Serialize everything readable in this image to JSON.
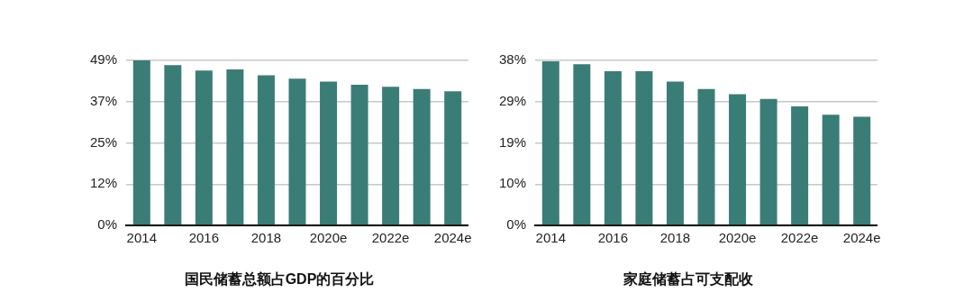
{
  "chart_data": [
    {
      "type": "bar",
      "title": "国民储蓄总额占GDP的百分比",
      "categories": [
        "2014",
        null,
        "2016",
        null,
        "2018",
        null,
        "2020e",
        null,
        "2022e",
        null,
        "2024e"
      ],
      "values": [
        49.0,
        47.6,
        46.0,
        46.3,
        44.6,
        43.6,
        42.7,
        41.8,
        41.2,
        40.5,
        39.8
      ],
      "color": "#3a7d76",
      "ylim": [
        0,
        49
      ],
      "yticks": [
        {
          "value": 0,
          "label": "0%"
        },
        {
          "value": 12.25,
          "label": "12%"
        },
        {
          "value": 24.5,
          "label": "25%"
        },
        {
          "value": 36.75,
          "label": "37%"
        },
        {
          "value": 49,
          "label": "49%"
        }
      ],
      "grid": "y",
      "legend": false
    },
    {
      "type": "bar",
      "title": "家庭储蓄占可支配收",
      "categories": [
        "2014",
        null,
        "2016",
        null,
        "2018",
        null,
        "2020e",
        null,
        "2022e",
        null,
        "2024e"
      ],
      "values": [
        37.8,
        37.1,
        35.5,
        35.5,
        33.1,
        31.4,
        30.2,
        29.1,
        27.4,
        25.5,
        25.0
      ],
      "color": "#3a7d76",
      "ylim": [
        0,
        38
      ],
      "yticks": [
        {
          "value": 0,
          "label": "0%"
        },
        {
          "value": 9.5,
          "label": "10%"
        },
        {
          "value": 19,
          "label": "19%"
        },
        {
          "value": 28.5,
          "label": "29%"
        },
        {
          "value": 38,
          "label": "38%"
        }
      ],
      "grid": "y",
      "legend": false
    }
  ]
}
